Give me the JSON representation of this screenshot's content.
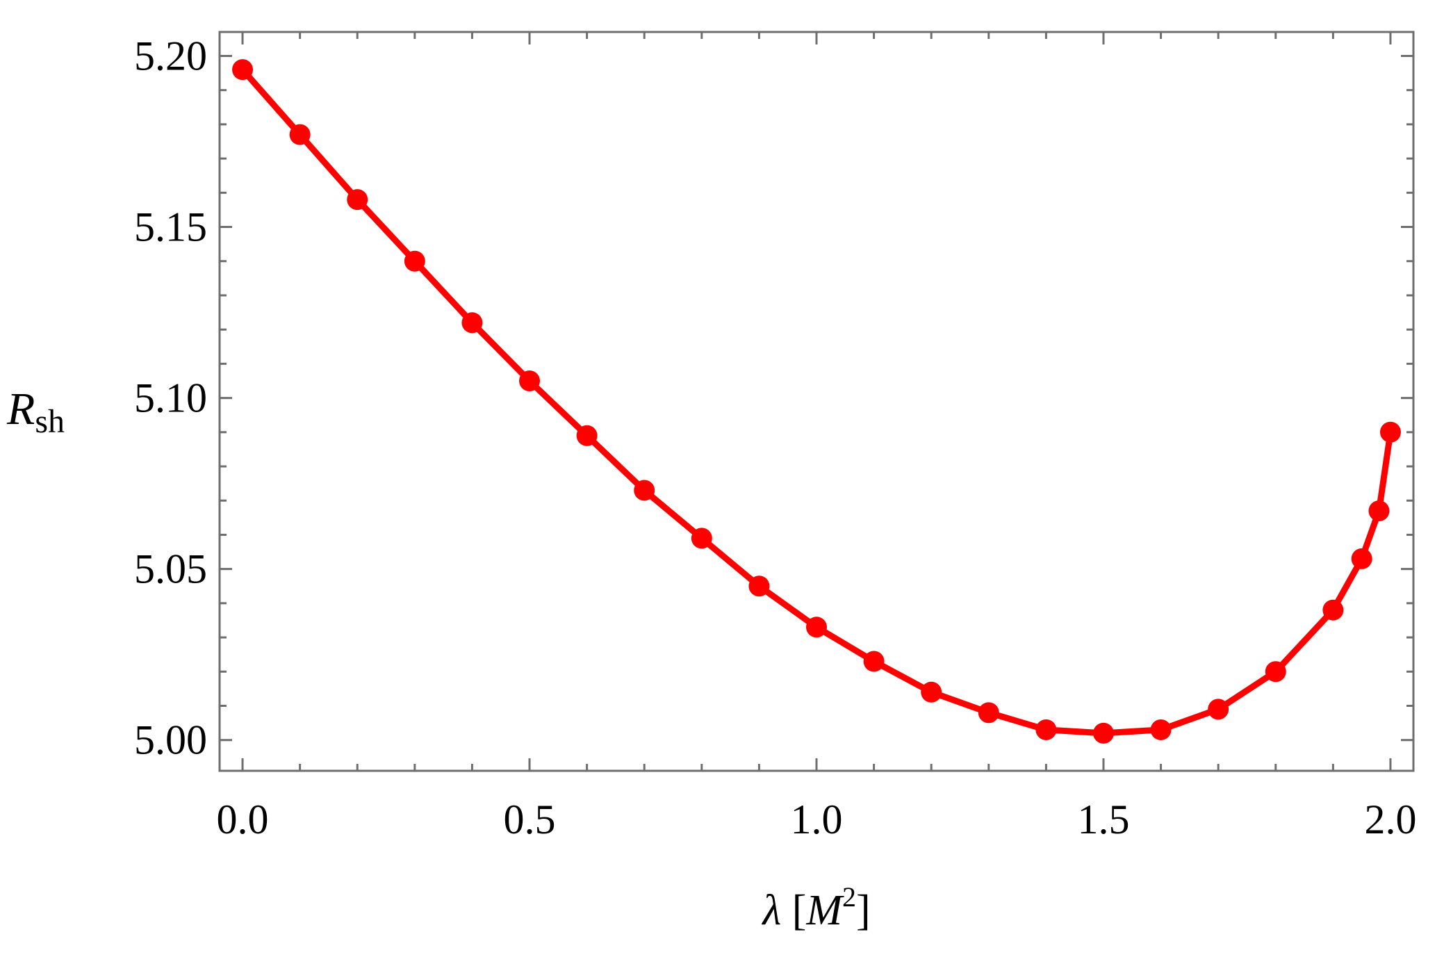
{
  "chart_data": {
    "type": "line",
    "title": "",
    "xlabel": "λ [M²]",
    "xlabel_parts": {
      "symbol": "λ",
      "open": " [",
      "var": "M",
      "sup": "2",
      "close": "]"
    },
    "ylabel": "Rsh",
    "ylabel_parts": {
      "var": "R",
      "sub": "sh"
    },
    "xlim": [
      -0.04,
      2.04
    ],
    "ylim": [
      4.991,
      5.207
    ],
    "x_ticks": [
      "0.0",
      "0.5",
      "1.0",
      "1.5",
      "2.0"
    ],
    "y_ticks": [
      "5.00",
      "5.05",
      "5.10",
      "5.15",
      "5.20"
    ],
    "grid": false,
    "legend": "none",
    "series": [
      {
        "color": "#ff0000",
        "marker": "circle",
        "x": [
          0.0,
          0.1,
          0.2,
          0.3,
          0.4,
          0.5,
          0.6,
          0.7,
          0.8,
          0.9,
          1.0,
          1.1,
          1.2,
          1.3,
          1.4,
          1.5,
          1.6,
          1.7,
          1.8,
          1.9,
          1.95,
          1.98,
          2.0
        ],
        "y": [
          5.196,
          5.177,
          5.158,
          5.14,
          5.122,
          5.105,
          5.089,
          5.073,
          5.059,
          5.045,
          5.033,
          5.023,
          5.014,
          5.008,
          5.003,
          5.002,
          5.003,
          5.009,
          5.02,
          5.038,
          5.053,
          5.067,
          5.09
        ]
      }
    ]
  }
}
